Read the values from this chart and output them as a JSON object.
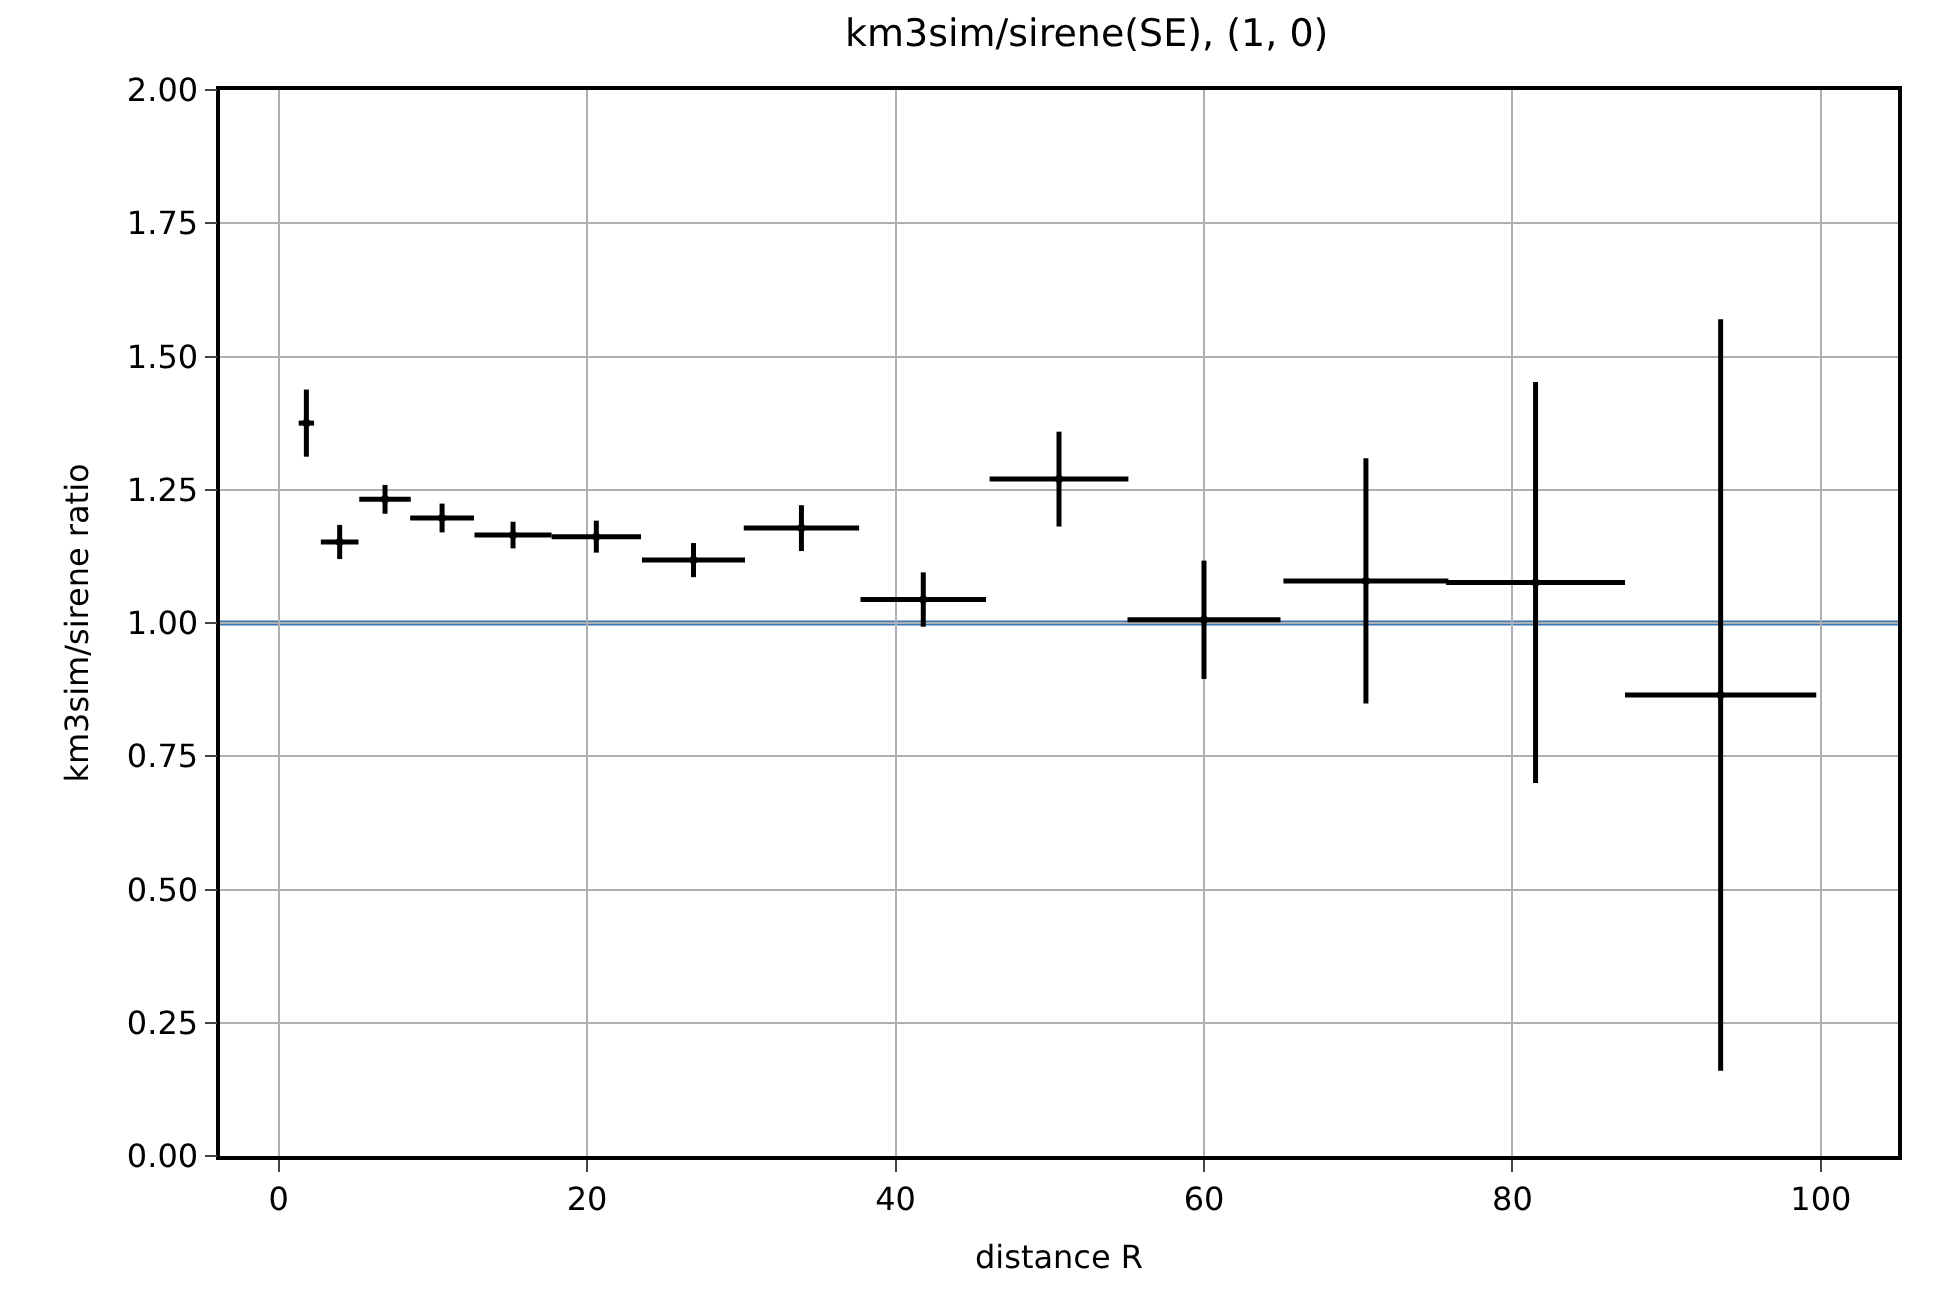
{
  "chart_data": {
    "type": "scatter",
    "title": "km3sim/sirene(SE), (1, 0)",
    "xlabel": "distance R",
    "ylabel": "km3sim/sirene ratio",
    "x": [
      1.8,
      3.96,
      6.9,
      10.6,
      15.2,
      20.6,
      26.9,
      33.9,
      41.8,
      50.6,
      60.0,
      70.5,
      81.5,
      93.5
    ],
    "values": [
      1.375,
      1.152,
      1.232,
      1.197,
      1.165,
      1.162,
      1.118,
      1.178,
      1.044,
      1.27,
      1.006,
      1.079,
      1.076,
      0.865
    ],
    "color": "#000000",
    "errors": [
      0.063,
      0.032,
      0.027,
      0.027,
      0.025,
      0.03,
      0.032,
      0.043,
      0.051,
      0.089,
      0.111,
      0.23,
      0.376,
      0.705
    ],
    "xerrors": [
      0.5,
      1.22,
      1.67,
      2.07,
      2.5,
      2.9,
      3.34,
      3.74,
      4.07,
      4.5,
      4.96,
      5.35,
      5.8,
      6.2
    ],
    "marker": "circle",
    "xlim": [
      -3.8,
      105
    ],
    "xticks": [
      0,
      20,
      40,
      60,
      80,
      100
    ],
    "ylim": [
      0,
      2
    ],
    "yticks": [
      {
        "value": 0,
        "label": "0.00"
      },
      {
        "value": 0.25,
        "label": "0.25"
      },
      {
        "value": 0.5,
        "label": "0.50"
      },
      {
        "value": 0.75,
        "label": "0.75"
      },
      {
        "value": 1,
        "label": "1.00"
      },
      {
        "value": 1.25,
        "label": "1.25"
      },
      {
        "value": 1.5,
        "label": "1.50"
      },
      {
        "value": 1.75,
        "label": "1.75"
      },
      {
        "value": 2,
        "label": "2.00"
      }
    ],
    "ref_lines": [
      {
        "axis": "y",
        "value": 1,
        "label": null,
        "color": "#3a76b0"
      }
    ],
    "grid": true
  }
}
